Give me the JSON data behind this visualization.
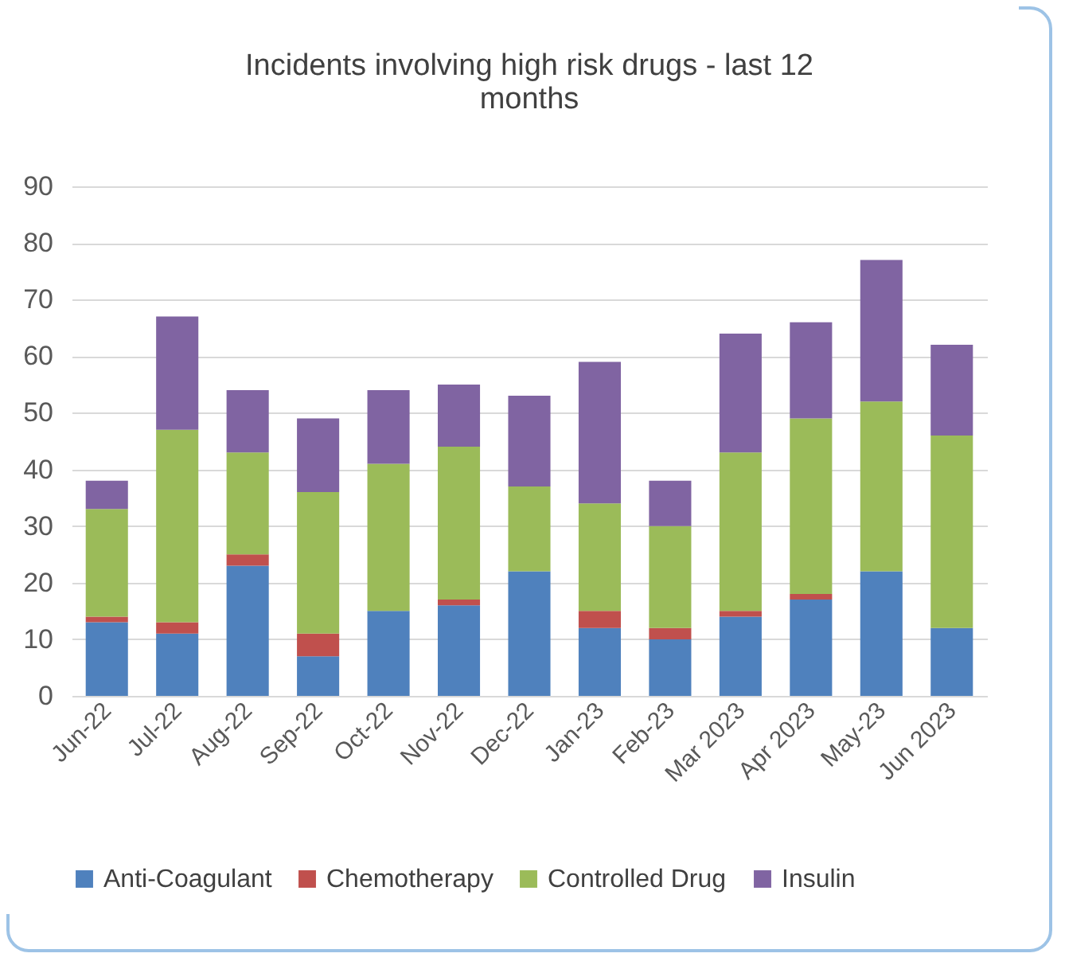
{
  "chart_data": {
    "type": "bar",
    "title": "Incidents involving high risk drugs - last 12 months",
    "stacked": true,
    "categories": [
      "Jun-22",
      "Jul-22",
      "Aug-22",
      "Sep-22",
      "Oct-22",
      "Nov-22",
      "Dec-22",
      "Jan-23",
      "Feb-23",
      "Mar 2023",
      "Apr 2023",
      "May-23",
      "Jun 2023"
    ],
    "series": [
      {
        "name": "Anti-Coagulant",
        "color": "#4f81bd",
        "values": [
          13,
          11,
          23,
          7,
          15,
          16,
          22,
          12,
          10,
          14,
          17,
          22,
          12
        ]
      },
      {
        "name": "Chemotherapy",
        "color": "#c0504d",
        "values": [
          1,
          2,
          2,
          4,
          0,
          1,
          0,
          3,
          2,
          1,
          1,
          0,
          0
        ]
      },
      {
        "name": "Controlled Drug",
        "color": "#9bbb59",
        "values": [
          19,
          34,
          18,
          25,
          26,
          27,
          15,
          19,
          18,
          28,
          31,
          30,
          34
        ]
      },
      {
        "name": "Insulin",
        "color": "#8064a2",
        "values": [
          5,
          20,
          11,
          13,
          13,
          11,
          16,
          25,
          8,
          21,
          17,
          25,
          16
        ]
      }
    ],
    "ylim": [
      0,
      90
    ],
    "yticks": [
      0,
      10,
      20,
      30,
      40,
      50,
      60,
      70,
      80,
      90
    ],
    "grid": "y",
    "legend": "bottom"
  }
}
